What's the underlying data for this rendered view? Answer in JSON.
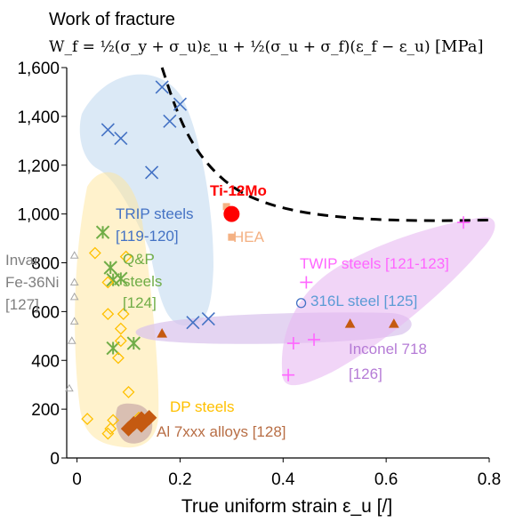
{
  "chart_data": {
    "type": "scatter",
    "title": "Work of fracture",
    "formula": "W_f = ½(σ_y + σ_u)ε_u + ½(σ_u + σ_f)(ε_f − ε_u)",
    "formula_unit": "[MPa]",
    "xlabel": "True uniform strain ε_u [/]",
    "ylabel": "",
    "xlim": [
      -0.02,
      0.8
    ],
    "ylim": [
      0,
      1600
    ],
    "x_ticks": [
      "0",
      "0.2",
      "0.4",
      "0.6",
      "0.8"
    ],
    "x_tick_values": [
      0,
      0.2,
      0.4,
      0.6,
      0.8
    ],
    "y_ticks": [
      "0",
      "200",
      "400",
      "600",
      "800",
      "1,000",
      "1,200",
      "1,400",
      "1,600"
    ],
    "y_tick_values": [
      0,
      200,
      400,
      600,
      800,
      1000,
      1200,
      1400,
      1600
    ],
    "grid": false,
    "iso_curve": {
      "style": "dashed",
      "points": [
        [
          0.165,
          1600
        ],
        [
          0.19,
          1440
        ],
        [
          0.22,
          1300
        ],
        [
          0.26,
          1185
        ],
        [
          0.31,
          1095
        ],
        [
          0.37,
          1040
        ],
        [
          0.44,
          1005
        ],
        [
          0.52,
          985
        ],
        [
          0.6,
          975
        ],
        [
          0.7,
          972
        ],
        [
          0.8,
          975
        ]
      ]
    },
    "series": [
      {
        "name": "Ti-12Mo",
        "label": "Ti-12Mo",
        "color": "#ff0000",
        "marker": "circle-filled",
        "points": [
          [
            0.3,
            1000
          ]
        ]
      },
      {
        "name": "HEA",
        "label": "HEA",
        "color": "#f4b183",
        "marker": "square",
        "points": [
          [
            0.29,
            1030
          ],
          [
            0.3,
            905
          ]
        ]
      },
      {
        "name": "TRIP steels",
        "label": "TRIP steels",
        "ref": "[119-120]",
        "color": "#4472c4",
        "text_color": "#4472c4",
        "marker": "x",
        "points": [
          [
            0.06,
            1345
          ],
          [
            0.085,
            1310
          ],
          [
            0.165,
            1520
          ],
          [
            0.2,
            1450
          ],
          [
            0.18,
            1380
          ],
          [
            0.145,
            1170
          ],
          [
            0.225,
            555
          ],
          [
            0.255,
            570
          ]
        ]
      },
      {
        "name": "Q&P steels",
        "label": "Q&P",
        "label2": "steels",
        "ref": "[124]",
        "color": "#70ad47",
        "text_color": "#70ad47",
        "marker": "asterisk",
        "points": [
          [
            0.05,
            925
          ],
          [
            0.065,
            780
          ],
          [
            0.07,
            730
          ],
          [
            0.085,
            735
          ],
          [
            0.07,
            450
          ],
          [
            0.11,
            470
          ]
        ]
      },
      {
        "name": "DP steels",
        "label": "DP steels",
        "color": "#ffc000",
        "text_color": "#ffc000",
        "marker": "diamond-open",
        "points": [
          [
            0.035,
            840
          ],
          [
            0.095,
            825
          ],
          [
            0.06,
            720
          ],
          [
            0.06,
            590
          ],
          [
            0.09,
            590
          ],
          [
            0.085,
            530
          ],
          [
            0.085,
            480
          ],
          [
            0.08,
            410
          ],
          [
            0.1,
            270
          ],
          [
            0.02,
            160
          ],
          [
            0.07,
            155
          ],
          [
            0.065,
            120
          ],
          [
            0.12,
            165
          ],
          [
            0.06,
            100
          ]
        ]
      },
      {
        "name": "Al 7xxx alloys",
        "label": "Al 7xxx alloys [128]",
        "color": "#c55a11",
        "text_color": "#b86e45",
        "marker": "diamond-filled",
        "points": [
          [
            0.1,
            120
          ],
          [
            0.11,
            140
          ],
          [
            0.125,
            160
          ],
          [
            0.14,
            165
          ],
          [
            0.125,
            135
          ]
        ]
      },
      {
        "name": "Invar Fe-36Ni",
        "label": "Invar",
        "label2": "Fe-36Ni",
        "ref": "[127]",
        "color": "#a6a6a6",
        "text_color": "#7f7f7f",
        "marker": "triangle-open",
        "points": [
          [
            -0.005,
            830
          ],
          [
            -0.005,
            720
          ],
          [
            -0.005,
            660
          ],
          [
            -0.005,
            560
          ],
          [
            -0.01,
            480
          ],
          [
            -0.015,
            285
          ]
        ]
      },
      {
        "name": "TWIP steels",
        "label": "TWIP steels [121-123]",
        "color": "#ff66ff",
        "text_color": "#ff66ff",
        "marker": "plus",
        "points": [
          [
            0.75,
            965
          ],
          [
            0.445,
            720
          ],
          [
            0.42,
            470
          ],
          [
            0.46,
            485
          ],
          [
            0.41,
            340
          ]
        ]
      },
      {
        "name": "316L steel",
        "label": "316L steel [125]",
        "color": "#4472c4",
        "text_color": "#5b9bd5",
        "marker": "circle-open",
        "points": [
          [
            0.435,
            635
          ]
        ]
      },
      {
        "name": "Inconel 718",
        "label": "Inconel 718",
        "ref": "[126]",
        "color": "#c55a11",
        "text_color": "#b57bd6",
        "marker": "triangle-filled",
        "points": [
          [
            0.165,
            510
          ],
          [
            0.53,
            550
          ],
          [
            0.615,
            550
          ]
        ]
      }
    ],
    "regions": [
      {
        "name": "TRIP steels region",
        "color": "#bdd7ee"
      },
      {
        "name": "DP steels region",
        "color": "#ffe699"
      },
      {
        "name": "Al 7xxx region",
        "color": "#c9a9a6"
      },
      {
        "name": "TWIP steels region",
        "color": "#e7b9f2"
      },
      {
        "name": "Inconel 718 region",
        "color": "#d9c2ec"
      }
    ]
  }
}
